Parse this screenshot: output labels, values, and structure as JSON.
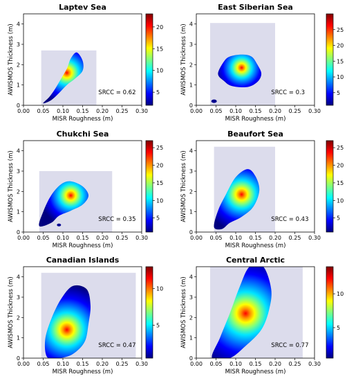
{
  "figure": {
    "colors": {
      "box": "#dcdcec",
      "colormap": [
        "#00007f",
        "#0000ff",
        "#007fff",
        "#00ffff",
        "#7fff7f",
        "#ffff00",
        "#ff7f00",
        "#ff0000",
        "#7f0000"
      ]
    }
  },
  "chart_data": [
    {
      "type": "heatmap",
      "title": "Laptev Sea",
      "xlabel": "MISR Roughness (m)",
      "ylabel": "AWISMOS Thickness (m)",
      "xlim": [
        0,
        0.3
      ],
      "ylim": [
        0,
        4.5
      ],
      "xticks": [
        "0.00",
        "0.05",
        "0.10",
        "0.15",
        "0.20",
        "0.25",
        "0.30"
      ],
      "yticks": [
        "0",
        "1",
        "2",
        "3",
        "4"
      ],
      "annotation": "SRCC = 0.62",
      "srcc": 0.62,
      "colorbar": {
        "min": 2,
        "max": 23,
        "ticks": [
          "5",
          "10",
          "15",
          "20"
        ]
      },
      "data_range_box": {
        "x": [
          0.045,
          0.185
        ],
        "y": [
          0.0,
          2.7
        ]
      },
      "density_peak": {
        "x": 0.11,
        "y": 1.6
      }
    },
    {
      "type": "heatmap",
      "title": "East Siberian Sea",
      "xlabel": "MISR Roughness (m)",
      "ylabel": "AWISMOS Thickness (m)",
      "xlim": [
        0,
        0.3
      ],
      "ylim": [
        0,
        4.5
      ],
      "xticks": [
        "0.00",
        "0.05",
        "0.10",
        "0.15",
        "0.20",
        "0.25",
        "0.30"
      ],
      "yticks": [
        "0",
        "1",
        "2",
        "3",
        "4"
      ],
      "annotation": "SRCC = 0.3",
      "srcc": 0.3,
      "colorbar": {
        "min": 1,
        "max": 30,
        "ticks": [
          "5",
          "10",
          "15",
          "20",
          "25"
        ]
      },
      "data_range_box": {
        "x": [
          0.035,
          0.2
        ],
        "y": [
          0.0,
          4.05
        ]
      },
      "density_peak": {
        "x": 0.115,
        "y": 1.85
      }
    },
    {
      "type": "heatmap",
      "title": "Chukchi Sea",
      "xlabel": "MISR Roughness (m)",
      "ylabel": "AWISMOS Thickness (m)",
      "xlim": [
        0,
        0.3
      ],
      "ylim": [
        0,
        4.5
      ],
      "xticks": [
        "0.00",
        "0.05",
        "0.10",
        "0.15",
        "0.20",
        "0.25",
        "0.30"
      ],
      "yticks": [
        "0",
        "1",
        "2",
        "3",
        "4"
      ],
      "annotation": "SRCC = 0.35",
      "srcc": 0.35,
      "colorbar": {
        "min": 1,
        "max": 27,
        "ticks": [
          "5",
          "10",
          "15",
          "20",
          "25"
        ]
      },
      "data_range_box": {
        "x": [
          0.04,
          0.225
        ],
        "y": [
          0.0,
          3.0
        ]
      },
      "density_peak": {
        "x": 0.12,
        "y": 1.8
      }
    },
    {
      "type": "heatmap",
      "title": "Beaufort Sea",
      "xlabel": "MISR Roughness (m)",
      "ylabel": "AWISMOS Thickness (m)",
      "xlim": [
        0,
        0.3
      ],
      "ylim": [
        0,
        4.5
      ],
      "xticks": [
        "0.00",
        "0.05",
        "0.10",
        "0.15",
        "0.20",
        "0.25",
        "0.30"
      ],
      "yticks": [
        "0",
        "1",
        "2",
        "3",
        "4"
      ],
      "annotation": "SRCC = 0.43",
      "srcc": 0.43,
      "colorbar": {
        "min": 1,
        "max": 27,
        "ticks": [
          "5",
          "10",
          "15",
          "20",
          "25"
        ]
      },
      "data_range_box": {
        "x": [
          0.045,
          0.2
        ],
        "y": [
          0.0,
          4.2
        ]
      },
      "density_peak": {
        "x": 0.115,
        "y": 1.85
      }
    },
    {
      "type": "heatmap",
      "title": "Canadian Islands",
      "xlabel": "MISR Roughness (m)",
      "ylabel": "AWISMOS Thickness (m)",
      "xlim": [
        0,
        0.3
      ],
      "ylim": [
        0,
        4.5
      ],
      "xticks": [
        "0.00",
        "0.05",
        "0.10",
        "0.15",
        "0.20",
        "0.25",
        "0.30"
      ],
      "yticks": [
        "0",
        "1",
        "2",
        "3",
        "4"
      ],
      "annotation": "SRCC = 0.47",
      "srcc": 0.47,
      "colorbar": {
        "min": 0.5,
        "max": 13,
        "ticks": [
          "5",
          "10"
        ]
      },
      "data_range_box": {
        "x": [
          0.045,
          0.285
        ],
        "y": [
          0.0,
          4.2
        ]
      },
      "density_peak": {
        "x": 0.11,
        "y": 1.4
      }
    },
    {
      "type": "heatmap",
      "title": "Central Arctic",
      "xlabel": "MISR Roughness (m)",
      "ylabel": "AWISMOS Thickness (m)",
      "xlim": [
        0,
        0.3
      ],
      "ylim": [
        0,
        4.5
      ],
      "xticks": [
        "0.00",
        "0.05",
        "0.10",
        "0.15",
        "0.20",
        "0.25",
        "0.30"
      ],
      "yticks": [
        "0",
        "1",
        "2",
        "3",
        "4"
      ],
      "annotation": "SRCC = 0.77",
      "srcc": 0.77,
      "colorbar": {
        "min": 0.5,
        "max": 14,
        "ticks": [
          "5",
          "10"
        ]
      },
      "data_range_box": {
        "x": [
          0.035,
          0.27
        ],
        "y": [
          0.0,
          4.5
        ]
      },
      "density_peak": {
        "x": 0.125,
        "y": 2.2
      }
    }
  ]
}
